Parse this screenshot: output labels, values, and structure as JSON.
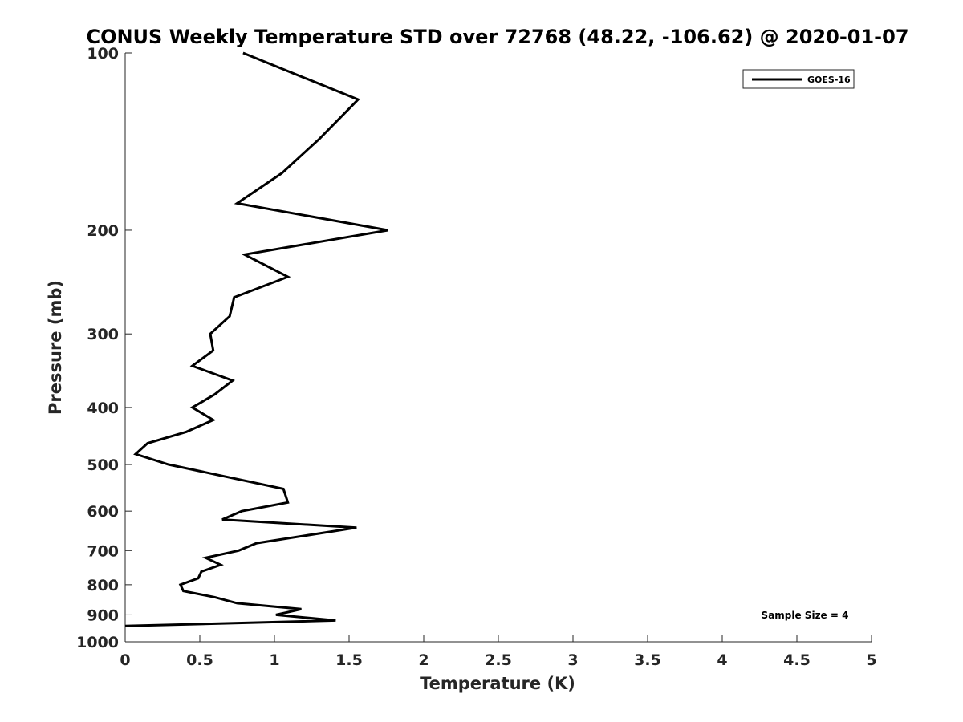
{
  "chart_data": {
    "type": "line",
    "title": "CONUS Weekly Temperature STD over 72768 (48.22, -106.62) @ 2020-01-07",
    "xlabel": "Temperature (K)",
    "ylabel": "Pressure (mb)",
    "xlim": [
      0,
      5
    ],
    "ylim": [
      100,
      1000
    ],
    "yscale": "log",
    "y_reversed": true,
    "grid": false,
    "legend_position": "top-right",
    "x_ticks": [
      0,
      0.5,
      1,
      1.5,
      2,
      2.5,
      3,
      3.5,
      4,
      4.5,
      5
    ],
    "x_tick_labels": [
      "0",
      "0.5",
      "1",
      "1.5",
      "2",
      "2.5",
      "3",
      "3.5",
      "4",
      "4.5",
      "5"
    ],
    "y_ticks": [
      100,
      200,
      300,
      400,
      500,
      600,
      700,
      800,
      900,
      1000
    ],
    "y_tick_labels": [
      "100",
      "200",
      "300",
      "400",
      "500",
      "600",
      "700",
      "800",
      "900",
      "1000"
    ],
    "annotation": "Sample Size = 4",
    "series": [
      {
        "name": "GOES-16",
        "color": "#000000",
        "points": [
          {
            "x": 0.79,
            "y": 100
          },
          {
            "x": 1.56,
            "y": 120
          },
          {
            "x": 1.3,
            "y": 140
          },
          {
            "x": 1.05,
            "y": 160
          },
          {
            "x": 0.75,
            "y": 180
          },
          {
            "x": 1.76,
            "y": 200
          },
          {
            "x": 0.8,
            "y": 220
          },
          {
            "x": 1.09,
            "y": 240
          },
          {
            "x": 0.73,
            "y": 260
          },
          {
            "x": 0.7,
            "y": 280
          },
          {
            "x": 0.57,
            "y": 300
          },
          {
            "x": 0.59,
            "y": 320
          },
          {
            "x": 0.45,
            "y": 340
          },
          {
            "x": 0.72,
            "y": 360
          },
          {
            "x": 0.6,
            "y": 380
          },
          {
            "x": 0.45,
            "y": 400
          },
          {
            "x": 0.59,
            "y": 420
          },
          {
            "x": 0.41,
            "y": 440
          },
          {
            "x": 0.15,
            "y": 460
          },
          {
            "x": 0.07,
            "y": 480
          },
          {
            "x": 0.29,
            "y": 500
          },
          {
            "x": 1.06,
            "y": 550
          },
          {
            "x": 1.09,
            "y": 580
          },
          {
            "x": 0.78,
            "y": 600
          },
          {
            "x": 0.65,
            "y": 620
          },
          {
            "x": 1.55,
            "y": 640
          },
          {
            "x": 0.88,
            "y": 680
          },
          {
            "x": 0.76,
            "y": 700
          },
          {
            "x": 0.54,
            "y": 720
          },
          {
            "x": 0.64,
            "y": 740
          },
          {
            "x": 0.51,
            "y": 760
          },
          {
            "x": 0.49,
            "y": 780
          },
          {
            "x": 0.37,
            "y": 800
          },
          {
            "x": 0.39,
            "y": 820
          },
          {
            "x": 0.6,
            "y": 840
          },
          {
            "x": 0.75,
            "y": 860
          },
          {
            "x": 1.18,
            "y": 880
          },
          {
            "x": 1.01,
            "y": 900
          },
          {
            "x": 1.41,
            "y": 920
          },
          {
            "x": 0.0,
            "y": 940
          }
        ]
      }
    ]
  }
}
